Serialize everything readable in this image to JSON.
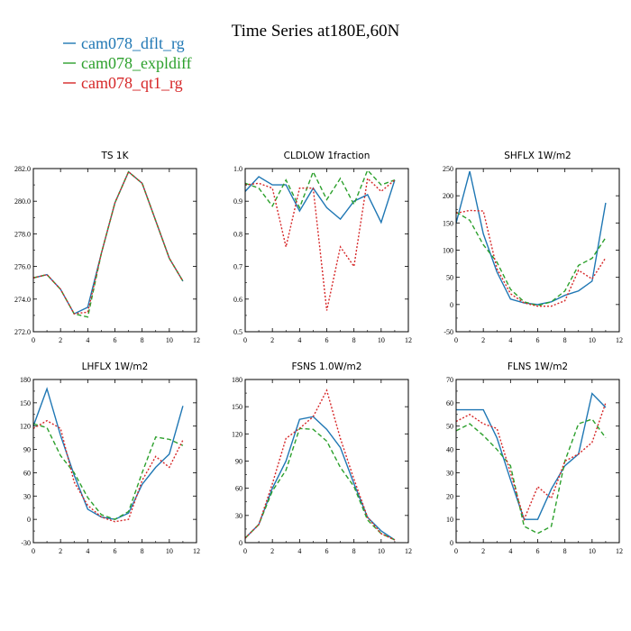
{
  "figure": {
    "title": "Time Series at180E,60N",
    "legend": [
      {
        "name": "cam078_dflt_rg",
        "color": "#1f77b4"
      },
      {
        "name": "cam078_expldiff",
        "color": "#2ca02c"
      },
      {
        "name": "cam078_qt1_rg",
        "color": "#d62728"
      }
    ]
  },
  "chart_data": [
    {
      "type": "line",
      "title": "TS 1K",
      "x": [
        0,
        1,
        2,
        3,
        4,
        5,
        6,
        7,
        8,
        9,
        10,
        11
      ],
      "xlim": [
        0,
        12
      ],
      "xticks": [
        "0",
        "2",
        "4",
        "6",
        "8",
        "10",
        "12"
      ],
      "ylim": [
        272.0,
        282.0
      ],
      "yticks": [
        "272.0",
        "274.0",
        "276.0",
        "278.0",
        "280.0",
        "282.0"
      ],
      "series": [
        {
          "name": "cam078_dflt_rg",
          "color": "#1f77b4",
          "dash": "solid",
          "values": [
            275.3,
            275.5,
            274.6,
            273.1,
            273.5,
            276.8,
            279.9,
            281.8,
            281.1,
            278.8,
            276.5,
            275.1
          ]
        },
        {
          "name": "cam078_expldiff",
          "color": "#2ca02c",
          "dash": "dashed",
          "values": [
            275.3,
            275.5,
            274.6,
            273.1,
            272.9,
            276.8,
            279.9,
            281.8,
            281.1,
            278.8,
            276.5,
            275.1
          ]
        },
        {
          "name": "cam078_qt1_rg",
          "color": "#d62728",
          "dash": "dotted",
          "values": [
            275.3,
            275.5,
            274.6,
            273.1,
            273.2,
            276.8,
            279.9,
            281.8,
            281.1,
            278.8,
            276.5,
            275.1
          ]
        }
      ]
    },
    {
      "type": "line",
      "title": "CLDLOW 1fraction",
      "x": [
        0,
        1,
        2,
        3,
        4,
        5,
        6,
        7,
        8,
        9,
        10,
        11
      ],
      "xlim": [
        0,
        12
      ],
      "xticks": [
        "0",
        "2",
        "4",
        "6",
        "8",
        "10",
        "12"
      ],
      "ylim": [
        0.5,
        1.0
      ],
      "yticks": [
        "0.5",
        "0.6",
        "0.7",
        "0.8",
        "0.9",
        "1.0"
      ],
      "series": [
        {
          "name": "cam078_dflt_rg",
          "color": "#1f77b4",
          "dash": "solid",
          "values": [
            0.93,
            0.975,
            0.95,
            0.95,
            0.87,
            0.94,
            0.88,
            0.845,
            0.9,
            0.92,
            0.835,
            0.965
          ]
        },
        {
          "name": "cam078_expldiff",
          "color": "#2ca02c",
          "dash": "dashed",
          "values": [
            0.955,
            0.94,
            0.885,
            0.965,
            0.88,
            0.99,
            0.905,
            0.97,
            0.89,
            0.995,
            0.95,
            0.965
          ]
        },
        {
          "name": "cam078_qt1_rg",
          "color": "#d62728",
          "dash": "dotted",
          "values": [
            0.95,
            0.955,
            0.94,
            0.76,
            0.94,
            0.94,
            0.565,
            0.76,
            0.7,
            0.97,
            0.93,
            0.965
          ]
        }
      ]
    },
    {
      "type": "line",
      "title": "SHFLX 1W/m2",
      "x": [
        0,
        1,
        2,
        3,
        4,
        5,
        6,
        7,
        8,
        9,
        10,
        11
      ],
      "xlim": [
        0,
        12
      ],
      "xticks": [
        "0",
        "2",
        "4",
        "6",
        "8",
        "10",
        "12"
      ],
      "ylim": [
        -50,
        250
      ],
      "yticks": [
        "-50",
        "0",
        "50",
        "100",
        "150",
        "200",
        "250"
      ],
      "series": [
        {
          "name": "cam078_dflt_rg",
          "color": "#1f77b4",
          "dash": "solid",
          "values": [
            150,
            245,
            130,
            60,
            10,
            3,
            0,
            5,
            17,
            25,
            43,
            187
          ]
        },
        {
          "name": "cam078_expldiff",
          "color": "#2ca02c",
          "dash": "dashed",
          "values": [
            170,
            155,
            110,
            78,
            28,
            5,
            -2,
            5,
            25,
            72,
            85,
            123
          ]
        },
        {
          "name": "cam078_qt1_rg",
          "color": "#d62728",
          "dash": "dotted",
          "values": [
            168,
            173,
            172,
            66,
            20,
            3,
            -3,
            -3,
            7,
            63,
            47,
            86
          ]
        }
      ]
    },
    {
      "type": "line",
      "title": "LHFLX 1W/m2",
      "x": [
        0,
        1,
        2,
        3,
        4,
        5,
        6,
        7,
        8,
        9,
        10,
        11
      ],
      "xlim": [
        0,
        12
      ],
      "xticks": [
        "0",
        "2",
        "4",
        "6",
        "8",
        "10",
        "12"
      ],
      "ylim": [
        -30,
        180
      ],
      "yticks": [
        "-30",
        "0",
        "30",
        "60",
        "90",
        "120",
        "150",
        "180"
      ],
      "series": [
        {
          "name": "cam078_dflt_rg",
          "color": "#1f77b4",
          "dash": "solid",
          "values": [
            120,
            168,
            108,
            57,
            13,
            3,
            0,
            8,
            45,
            67,
            84,
            146
          ]
        },
        {
          "name": "cam078_expldiff",
          "color": "#2ca02c",
          "dash": "dashed",
          "values": [
            123,
            118,
            82,
            60,
            28,
            6,
            0,
            10,
            60,
            106,
            103,
            95
          ]
        },
        {
          "name": "cam078_qt1_rg",
          "color": "#d62728",
          "dash": "dotted",
          "values": [
            117,
            127,
            117,
            48,
            18,
            3,
            -3,
            0,
            50,
            81,
            67,
            102
          ]
        }
      ]
    },
    {
      "type": "line",
      "title": "FSNS 1.0W/m2",
      "x": [
        0,
        1,
        2,
        3,
        4,
        5,
        6,
        7,
        8,
        9,
        10,
        11
      ],
      "xlim": [
        0,
        12
      ],
      "xticks": [
        "0",
        "2",
        "4",
        "6",
        "8",
        "10",
        "12"
      ],
      "ylim": [
        0,
        180
      ],
      "yticks": [
        "0",
        "30",
        "60",
        "90",
        "120",
        "150",
        "180"
      ],
      "series": [
        {
          "name": "cam078_dflt_rg",
          "color": "#1f77b4",
          "dash": "solid",
          "values": [
            5,
            20,
            60,
            90,
            136,
            139,
            125,
            105,
            65,
            28,
            13,
            3
          ]
        },
        {
          "name": "cam078_expldiff",
          "color": "#2ca02c",
          "dash": "dashed",
          "values": [
            5,
            20,
            57,
            80,
            126,
            125,
            112,
            83,
            62,
            25,
            10,
            3
          ]
        },
        {
          "name": "cam078_qt1_rg",
          "color": "#d62728",
          "dash": "dotted",
          "values": [
            5,
            20,
            65,
            115,
            126,
            139,
            168,
            115,
            70,
            28,
            10,
            3
          ]
        }
      ]
    },
    {
      "type": "line",
      "title": "FLNS 1W/m2",
      "x": [
        0,
        1,
        2,
        3,
        4,
        5,
        6,
        7,
        8,
        9,
        10,
        11
      ],
      "xlim": [
        0,
        12
      ],
      "xticks": [
        "0",
        "2",
        "4",
        "6",
        "8",
        "10",
        "12"
      ],
      "ylim": [
        0,
        70
      ],
      "yticks": [
        "0",
        "10",
        "20",
        "30",
        "40",
        "50",
        "60",
        "70"
      ],
      "series": [
        {
          "name": "cam078_dflt_rg",
          "color": "#1f77b4",
          "dash": "solid",
          "values": [
            57,
            57,
            57,
            45,
            27,
            10,
            10,
            23,
            33,
            38,
            64,
            58
          ]
        },
        {
          "name": "cam078_expldiff",
          "color": "#2ca02c",
          "dash": "dashed",
          "values": [
            48,
            51,
            46,
            40,
            33,
            7,
            4,
            7,
            35,
            51,
            53,
            45
          ]
        },
        {
          "name": "cam078_qt1_rg",
          "color": "#d62728",
          "dash": "dotted",
          "values": [
            52,
            55,
            51,
            49,
            30,
            10,
            24,
            19,
            35,
            38,
            43,
            60
          ]
        }
      ]
    }
  ]
}
